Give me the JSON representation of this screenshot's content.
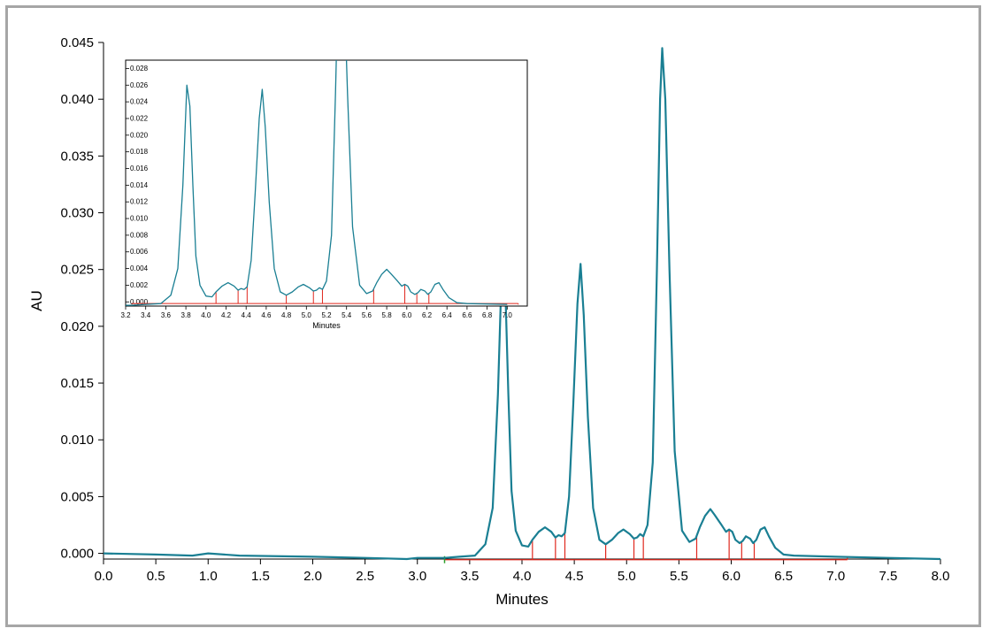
{
  "chart_data": [
    {
      "type": "line",
      "xlabel": "Minutes",
      "ylabel": "AU",
      "xlim": [
        0.0,
        8.0
      ],
      "ylim": [
        -0.0005,
        0.045
      ],
      "x_ticks": [
        "0.0",
        "0.5",
        "1.0",
        "1.5",
        "2.0",
        "2.5",
        "3.0",
        "3.5",
        "4.0",
        "4.5",
        "5.0",
        "5.5",
        "6.0",
        "6.5",
        "7.0",
        "7.5",
        "8.0"
      ],
      "y_ticks": [
        "0.000",
        "0.005",
        "0.010",
        "0.015",
        "0.020",
        "0.025",
        "0.030",
        "0.035",
        "0.040",
        "0.045"
      ],
      "line_color": "#1a7f93",
      "baseline_color": "#e0281e",
      "grid": false,
      "series": [
        {
          "x": [
            0.0,
            0.5,
            0.85,
            1.0,
            1.3,
            2.0,
            2.5,
            2.9,
            3.0,
            3.26,
            3.4,
            3.55,
            3.65,
            3.72,
            3.77,
            3.81,
            3.84,
            3.87,
            3.9,
            3.94,
            4.0,
            4.06,
            4.1,
            4.16,
            4.22,
            4.28,
            4.32,
            4.35,
            4.38,
            4.41,
            4.45,
            4.49,
            4.53,
            4.56,
            4.59,
            4.63,
            4.68,
            4.74,
            4.8,
            4.86,
            4.92,
            4.97,
            5.03,
            5.07,
            5.1,
            5.13,
            5.16,
            5.2,
            5.25,
            5.29,
            5.32,
            5.34,
            5.37,
            5.41,
            5.46,
            5.53,
            5.6,
            5.66,
            5.7,
            5.75,
            5.8,
            5.84,
            5.9,
            5.95,
            5.98,
            6.01,
            6.04,
            6.08,
            6.11,
            6.14,
            6.18,
            6.21,
            6.24,
            6.28,
            6.32,
            6.36,
            6.42,
            6.5,
            6.6,
            7.0,
            7.5,
            8.0
          ],
          "y": [
            0.0,
            -0.0001,
            -0.0002,
            0.0,
            -0.0002,
            -0.0003,
            -0.0004,
            -0.0005,
            -0.0004,
            -0.0004,
            -0.0003,
            -0.0002,
            0.0008,
            0.004,
            0.014,
            0.026,
            0.0235,
            0.014,
            0.0055,
            0.002,
            0.0007,
            0.0006,
            0.0012,
            0.0019,
            0.0023,
            0.0019,
            0.0014,
            0.0016,
            0.0015,
            0.0018,
            0.005,
            0.013,
            0.022,
            0.0255,
            0.021,
            0.012,
            0.004,
            0.0012,
            0.0008,
            0.0012,
            0.0018,
            0.0021,
            0.0017,
            0.0013,
            0.0014,
            0.0017,
            0.0015,
            0.0025,
            0.008,
            0.025,
            0.04,
            0.0445,
            0.04,
            0.025,
            0.009,
            0.002,
            0.001,
            0.0013,
            0.0023,
            0.0033,
            0.0039,
            0.0034,
            0.0026,
            0.0019,
            0.0021,
            0.0019,
            0.0012,
            0.0009,
            0.0011,
            0.0015,
            0.0013,
            0.0009,
            0.0012,
            0.0021,
            0.0023,
            0.0015,
            0.0005,
            -0.0001,
            -0.0002,
            -0.0003,
            -0.0004,
            -0.0005
          ]
        }
      ],
      "baseline": {
        "x": [
          3.26,
          7.11
        ],
        "y": [
          -0.0004,
          -0.0004
        ]
      },
      "peak_markers_x": [
        4.1,
        4.32,
        4.41,
        4.8,
        5.07,
        5.16,
        5.67,
        5.98,
        6.1,
        6.22,
        7.11
      ]
    },
    {
      "type": "line",
      "xlabel": "Minutes",
      "ylabel": "",
      "xlim": [
        3.2,
        7.2
      ],
      "ylim": [
        -0.0005,
        0.029
      ],
      "x_ticks": [
        "3.2",
        "3.4",
        "3.6",
        "3.8",
        "4.0",
        "4.2",
        "4.4",
        "4.6",
        "4.8",
        "5.0",
        "5.2",
        "5.4",
        "5.6",
        "5.8",
        "6.0",
        "6.2",
        "6.4",
        "6.6",
        "6.8",
        "7.0"
      ],
      "y_ticks": [
        "0.000",
        "0.002",
        "0.004",
        "0.006",
        "0.008",
        "0.010",
        "0.012",
        "0.014",
        "0.016",
        "0.018",
        "0.020",
        "0.022",
        "0.024",
        "0.026",
        "0.028"
      ],
      "grid": false,
      "inset_of": 0
    }
  ]
}
